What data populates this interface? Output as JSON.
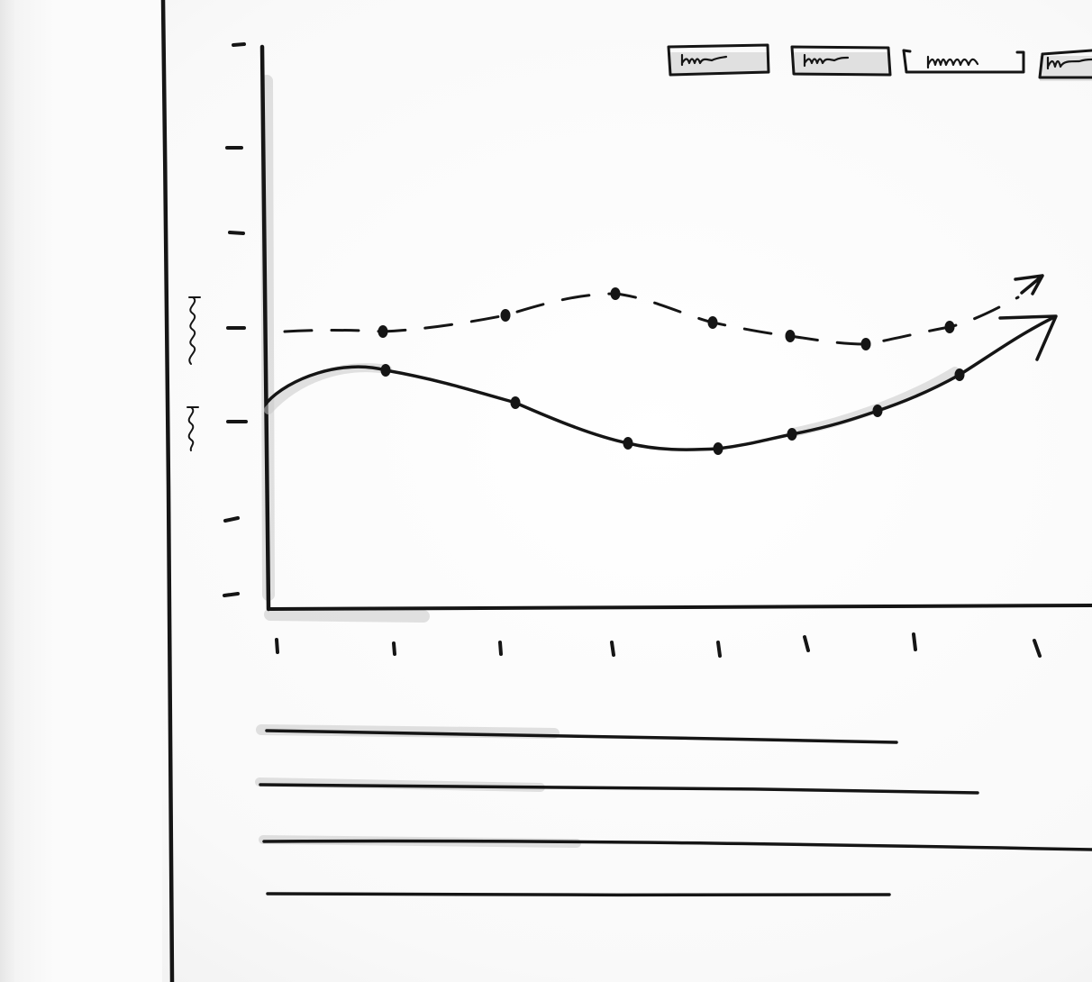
{
  "window": {
    "panel_color": "#fbfbfb",
    "ink_color": "#151515",
    "shadow_color": "#c9c9c9"
  },
  "chart_toolbar": {
    "buttons": [
      {
        "icon": "squiggle-text",
        "state": "selected"
      },
      {
        "icon": "squiggle-text",
        "state": "selected"
      },
      {
        "icon": "squiggle-text",
        "state": "normal"
      },
      {
        "icon": "squiggle-text",
        "state": "normal",
        "clipped": true
      }
    ]
  },
  "chart_data": {
    "type": "line",
    "title": "",
    "xlabel": "",
    "ylabel": "",
    "x_tick_count": 8,
    "y_tick_count": 7,
    "grid": false,
    "legend": "top-right",
    "y_tick_labels": [
      "scribble",
      "scribble"
    ],
    "series": [
      {
        "style": "dashed",
        "marker": "dot",
        "end": "arrow",
        "values": [
          3.0,
          2.9,
          3.1,
          3.35,
          3.05,
          2.95,
          2.85,
          3.0,
          3.6
        ]
      },
      {
        "style": "solid",
        "marker": "dot",
        "end": "arrow",
        "values": [
          2.0,
          2.5,
          2.15,
          1.75,
          1.7,
          1.85,
          2.1,
          2.55,
          3.05
        ]
      }
    ]
  },
  "content": {
    "text_line_count": 4,
    "text_lines": [
      "placeholder-text-line",
      "placeholder-text-line",
      "placeholder-text-line",
      "placeholder-text-line"
    ]
  }
}
